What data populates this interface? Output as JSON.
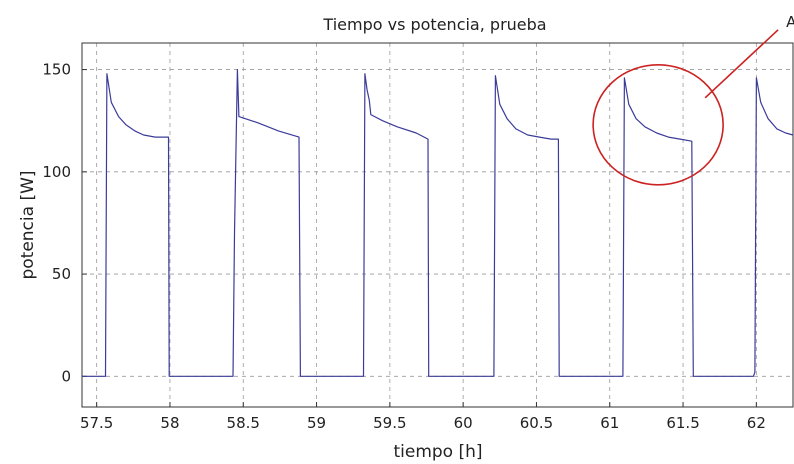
{
  "chart_data": {
    "type": "line",
    "title": "Tiempo vs potencia, prueba",
    "xlabel": "tiempo [h]",
    "ylabel": "potencia [W]",
    "xlim": [
      57.4,
      62.25
    ],
    "ylim": [
      -15,
      163
    ],
    "x_ticks": [
      "57.5",
      "58",
      "58.5",
      "59",
      "59.5",
      "60",
      "60.5",
      "61",
      "61.5",
      "62"
    ],
    "y_ticks": [
      "0",
      "50",
      "100",
      "150"
    ],
    "grid": true,
    "series": [
      {
        "color": "#3b3b9a",
        "points": [
          [
            57.4,
            0
          ],
          [
            57.56,
            0
          ],
          [
            57.57,
            148
          ],
          [
            57.6,
            134
          ],
          [
            57.65,
            127
          ],
          [
            57.7,
            123
          ],
          [
            57.76,
            120
          ],
          [
            57.82,
            118
          ],
          [
            57.9,
            117
          ],
          [
            57.99,
            117
          ],
          [
            57.995,
            0
          ],
          [
            58.43,
            0
          ],
          [
            58.44,
            70
          ],
          [
            58.46,
            150
          ],
          [
            58.47,
            127
          ],
          [
            58.6,
            124
          ],
          [
            58.74,
            120
          ],
          [
            58.88,
            117
          ],
          [
            58.89,
            0
          ],
          [
            59.32,
            0
          ],
          [
            59.33,
            148
          ],
          [
            59.345,
            140
          ],
          [
            59.36,
            135
          ],
          [
            59.37,
            128
          ],
          [
            59.45,
            125
          ],
          [
            59.55,
            122
          ],
          [
            59.68,
            119
          ],
          [
            59.76,
            116
          ],
          [
            59.765,
            0
          ],
          [
            60.21,
            0
          ],
          [
            60.22,
            147
          ],
          [
            60.25,
            133
          ],
          [
            60.3,
            126
          ],
          [
            60.36,
            121
          ],
          [
            60.44,
            118
          ],
          [
            60.52,
            117
          ],
          [
            60.6,
            116
          ],
          [
            60.65,
            116
          ],
          [
            60.655,
            0
          ],
          [
            61.09,
            0
          ],
          [
            61.1,
            146
          ],
          [
            61.13,
            133
          ],
          [
            61.18,
            126
          ],
          [
            61.24,
            122
          ],
          [
            61.32,
            119
          ],
          [
            61.4,
            117
          ],
          [
            61.48,
            116
          ],
          [
            61.56,
            115
          ],
          [
            61.57,
            0
          ],
          [
            61.98,
            0
          ],
          [
            61.99,
            2
          ],
          [
            62.0,
            146
          ],
          [
            62.03,
            134
          ],
          [
            62.08,
            126
          ],
          [
            62.14,
            121
          ],
          [
            62.2,
            119
          ],
          [
            62.25,
            118
          ]
        ]
      }
    ],
    "annotation": {
      "label": "A",
      "circle_center_data": [
        61.33,
        123
      ],
      "color": "#cc2222"
    }
  }
}
